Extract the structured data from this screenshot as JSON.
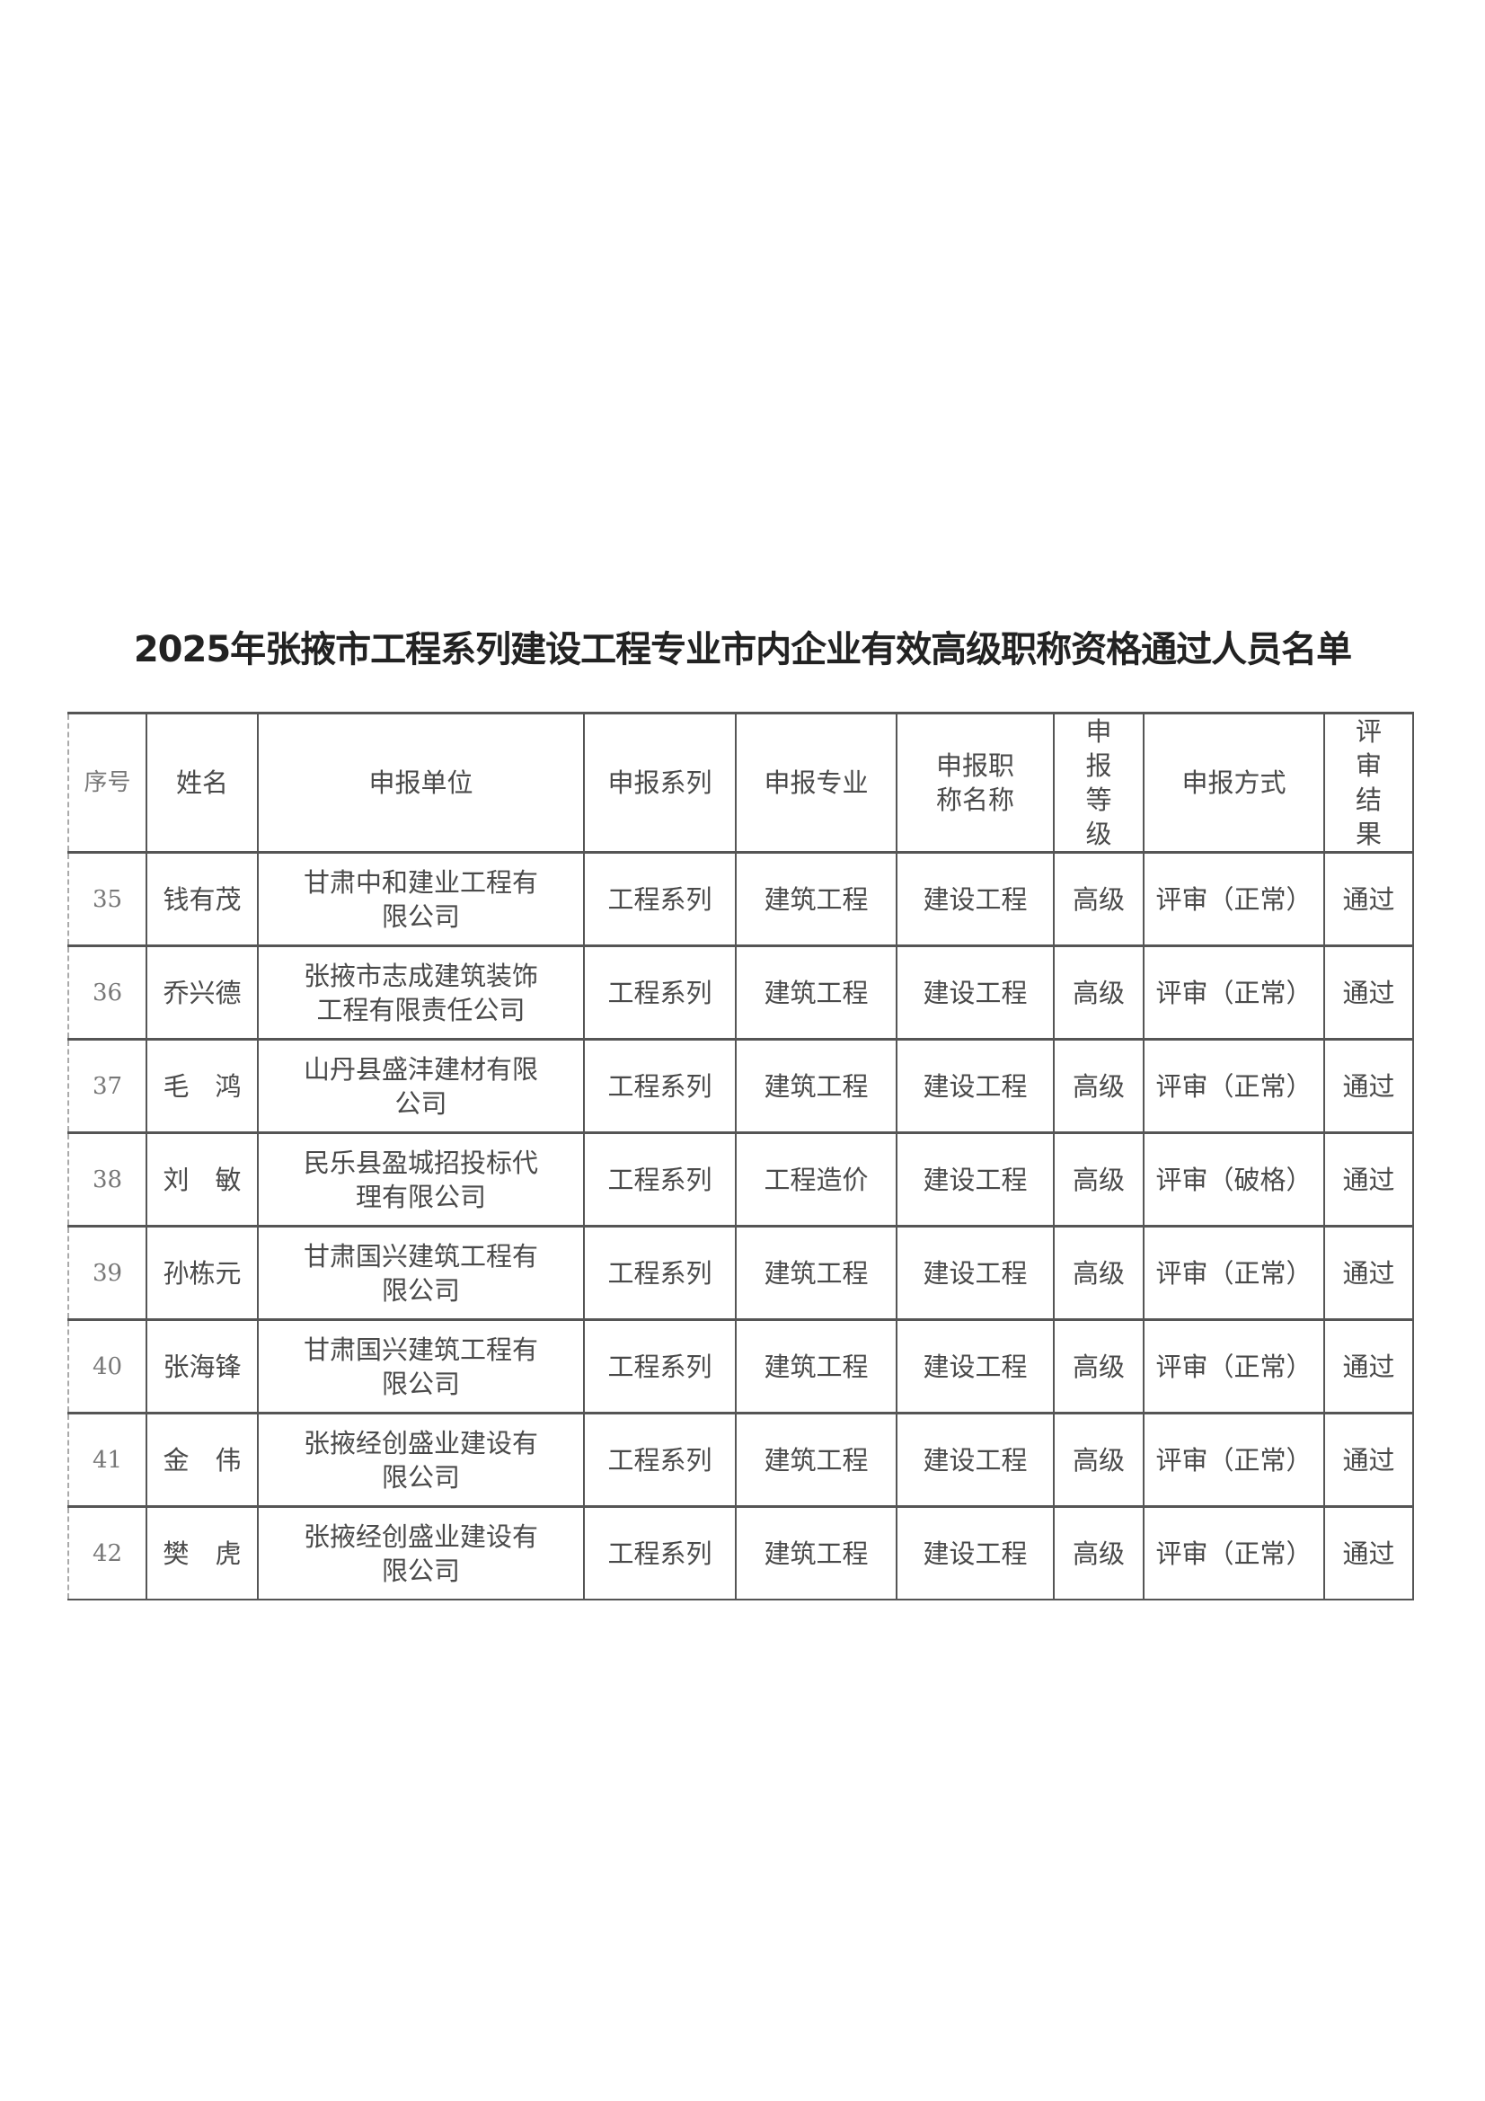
{
  "title": "2025年张掖市工程系列建设工程专业市内企业有效高级职称资格通过人员名单",
  "table": {
    "headers": [
      "序号",
      "姓名",
      "申报单位",
      "申报系列",
      "申报专业",
      "申报职称名称",
      "申报等级",
      "申报方式",
      "评审结果"
    ],
    "rows": [
      [
        "35",
        "钱有茂",
        "甘肃中和建业工程有限公司",
        "工程系列",
        "建筑工程",
        "建设工程",
        "高级",
        "评审（正常）",
        "通过"
      ],
      [
        "36",
        "乔兴德",
        "张掖市志成建筑装饰工程有限责任公司",
        "工程系列",
        "建筑工程",
        "建设工程",
        "高级",
        "评审（正常）",
        "通过"
      ],
      [
        "37",
        "毛　鸿",
        "山丹县盛沣建材有限公司",
        "工程系列",
        "建筑工程",
        "建设工程",
        "高级",
        "评审（正常）",
        "通过"
      ],
      [
        "38",
        "刘　敏",
        "民乐县盈城招投标代理有限公司",
        "工程系列",
        "工程造价",
        "建设工程",
        "高级",
        "评审（破格）",
        "通过"
      ],
      [
        "39",
        "孙栋元",
        "甘肃国兴建筑工程有限公司",
        "工程系列",
        "建筑工程",
        "建设工程",
        "高级",
        "评审（正常）",
        "通过"
      ],
      [
        "40",
        "张海锋",
        "甘肃国兴建筑工程有限公司",
        "工程系列",
        "建筑工程",
        "建设工程",
        "高级",
        "评审（正常）",
        "通过"
      ],
      [
        "41",
        "金　伟",
        "张掖经创盛业建设有限公司",
        "工程系列",
        "建筑工程",
        "建设工程",
        "高级",
        "评审（正常）",
        "通过"
      ],
      [
        "42",
        "樊　虎",
        "张掖经创盛业建设有限公司",
        "工程系列",
        "建筑工程",
        "建设工程",
        "高级",
        "评审（正常）",
        "通过"
      ]
    ]
  }
}
